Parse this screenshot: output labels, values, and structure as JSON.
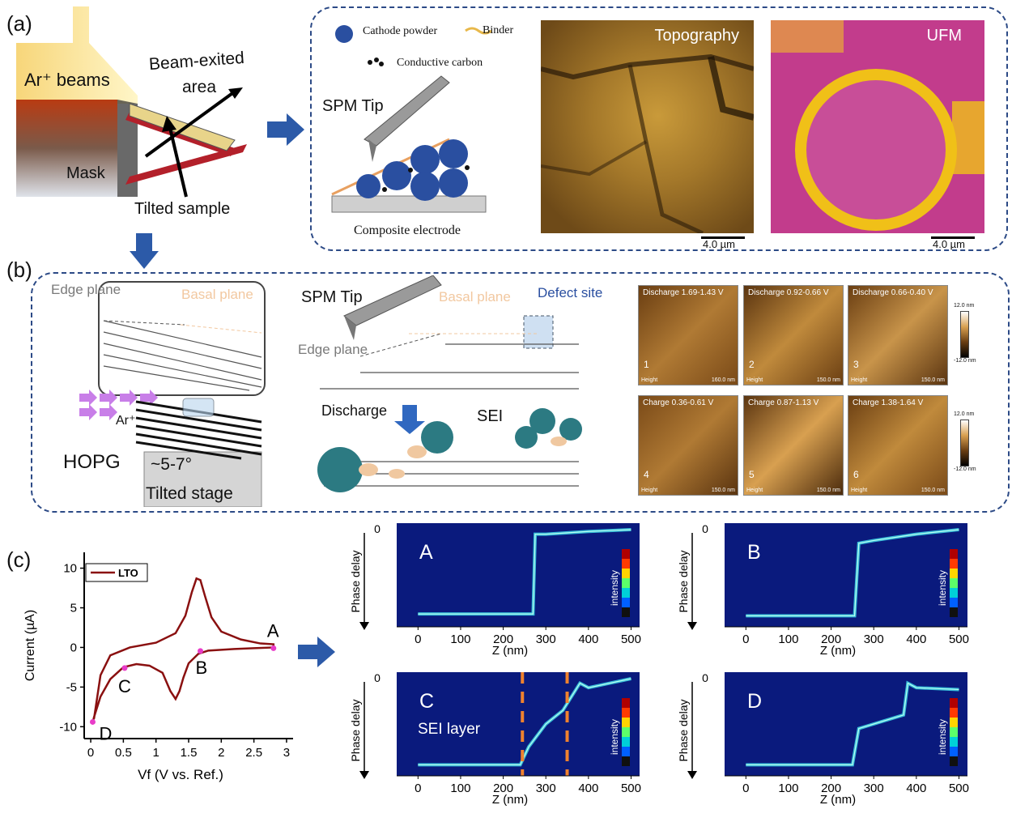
{
  "panels": {
    "a": "(a)",
    "b": "(b)",
    "c": "(c)"
  },
  "panel_a": {
    "ar_beams": "Ar⁺ beams",
    "beam_area_1": "Beam-exited",
    "beam_area_2": "area",
    "mask": "Mask",
    "tilted_sample": "Tilted sample",
    "cathode_powder": "Cathode powder",
    "binder": "Binder",
    "conductive_carbon": "Conductive carbon",
    "spm_tip": "SPM Tip",
    "composite_electrode": "Composite electrode",
    "topography": "Topography",
    "ufm": "UFM",
    "scale_1": "4.0 µm",
    "scale_2": "4.0 µm"
  },
  "panel_b": {
    "edge_plane_1": "Edge plane",
    "basal_plane_1": "Basal plane",
    "ar_label": "Ar⁺",
    "hopg": "HOPG",
    "angle": "~5-7°",
    "tilted_stage": "Tilted stage",
    "spm_tip": "SPM Tip",
    "basal_plane_2": "Basal plane",
    "defect_site": "Defect site",
    "edge_plane_2": "Edge plane",
    "discharge": "Discharge",
    "sei": "SEI",
    "colorbar_top": "12.0 nm",
    "colorbar_bottom": "-12.0 nm",
    "thumbs": [
      {
        "title": "Discharge 1.69-1.43 V",
        "num": "1",
        "height": "Height",
        "scale": "160.0 nm"
      },
      {
        "title": "Discharge 0.92-0.66 V",
        "num": "2",
        "height": "Height",
        "scale": "150.0 nm"
      },
      {
        "title": "Discharge 0.66-0.40 V",
        "num": "3",
        "height": "Height",
        "scale": "150.0 nm"
      },
      {
        "title": "Charge 0.36-0.61 V",
        "num": "4",
        "height": "Height",
        "scale": "150.0 nm"
      },
      {
        "title": "Charge 0.87-1.13 V",
        "num": "5",
        "height": "Height",
        "scale": "150.0 nm"
      },
      {
        "title": "Charge 1.38-1.64 V",
        "num": "6",
        "height": "Height",
        "scale": "150.0 nm"
      }
    ]
  },
  "cv_text": {
    "legend": "LTO",
    "point_A": "A",
    "point_B": "B",
    "point_C": "C",
    "point_D": "D"
  },
  "kymo": {
    "ylabel": "Phase delay",
    "xlabel": "Z (nm)",
    "intensity": "intensity",
    "sei_layer": "SEI layer",
    "y_zero": "0",
    "xticks": [
      "0",
      "100",
      "200",
      "300",
      "400",
      "500"
    ],
    "labels": [
      "A",
      "B",
      "C",
      "D"
    ]
  },
  "chart_data": [
    {
      "type": "line",
      "title": "",
      "xlabel": "Vf (V vs. Ref.)",
      "ylabel": "Current (µA)",
      "xlim": [
        -0.1,
        3.1
      ],
      "ylim": [
        -11.5,
        12
      ],
      "xticks": [
        0,
        0.5,
        1,
        1.5,
        2,
        2.5,
        3
      ],
      "yticks": [
        10,
        5,
        0,
        -5,
        -10
      ],
      "series": [
        {
          "name": "LTO",
          "x": [
            0.05,
            0.15,
            0.3,
            0.6,
            1.0,
            1.3,
            1.45,
            1.55,
            1.62,
            1.68,
            1.75,
            1.85,
            2.0,
            2.3,
            2.6,
            2.8,
            2.8,
            2.5,
            2.2,
            2.0,
            1.8,
            1.65,
            1.5,
            1.42,
            1.36,
            1.3,
            1.22,
            1.1,
            0.9,
            0.7,
            0.5,
            0.3,
            0.15,
            0.05,
            0.03
          ],
          "y": [
            -9.0,
            -3.5,
            -1.0,
            0.0,
            0.6,
            1.8,
            4.0,
            7.0,
            8.7,
            8.5,
            6.5,
            3.8,
            2.0,
            1.0,
            0.5,
            0.4,
            0.0,
            -0.1,
            -0.2,
            -0.3,
            -0.4,
            -0.8,
            -2.0,
            -3.8,
            -5.5,
            -6.5,
            -5.5,
            -3.2,
            -2.3,
            -2.1,
            -2.5,
            -4.0,
            -6.2,
            -8.8,
            -9.5
          ]
        }
      ],
      "markers": [
        {
          "label": "A",
          "x": 2.8,
          "y": -0.1
        },
        {
          "label": "B",
          "x": 1.68,
          "y": -0.45
        },
        {
          "label": "C",
          "x": 0.52,
          "y": -2.6
        },
        {
          "label": "D",
          "x": 0.03,
          "y": -9.4
        }
      ],
      "legend": "top-left"
    },
    {
      "type": "heatmap",
      "title": "A",
      "xlabel": "Z (nm)",
      "ylabel": "Phase delay",
      "xlim": [
        -50,
        520
      ],
      "xticks": [
        0,
        100,
        200,
        300,
        400,
        500
      ],
      "trace": {
        "z": [
          0,
          270,
          275,
          300,
          400,
          500
        ],
        "level": [
          0.93,
          0.93,
          0.05,
          0.05,
          0.02,
          0.0
        ]
      }
    },
    {
      "type": "heatmap",
      "title": "B",
      "xlabel": "Z (nm)",
      "ylabel": "Phase delay",
      "xlim": [
        -50,
        520
      ],
      "xticks": [
        0,
        100,
        200,
        300,
        400,
        500
      ],
      "trace": {
        "z": [
          0,
          255,
          265,
          300,
          400,
          500
        ],
        "level": [
          0.95,
          0.95,
          0.15,
          0.12,
          0.05,
          0.0
        ]
      }
    },
    {
      "type": "heatmap",
      "title": "C",
      "xlabel": "Z (nm)",
      "ylabel": "Phase delay",
      "xlim": [
        -50,
        520
      ],
      "xticks": [
        0,
        100,
        200,
        300,
        400,
        500
      ],
      "trace": {
        "z": [
          0,
          240,
          260,
          300,
          340,
          380,
          400,
          500
        ],
        "level": [
          0.95,
          0.95,
          0.75,
          0.5,
          0.35,
          0.05,
          0.1,
          0.0
        ]
      },
      "sei_bounds": [
        245,
        350
      ]
    },
    {
      "type": "heatmap",
      "title": "D",
      "xlabel": "Z (nm)",
      "ylabel": "Phase delay",
      "xlim": [
        -50,
        520
      ],
      "xticks": [
        0,
        100,
        200,
        300,
        400,
        500
      ],
      "trace": {
        "z": [
          0,
          250,
          265,
          300,
          370,
          380,
          400,
          500
        ],
        "level": [
          0.95,
          0.95,
          0.55,
          0.5,
          0.4,
          0.05,
          0.1,
          0.12
        ]
      }
    }
  ]
}
